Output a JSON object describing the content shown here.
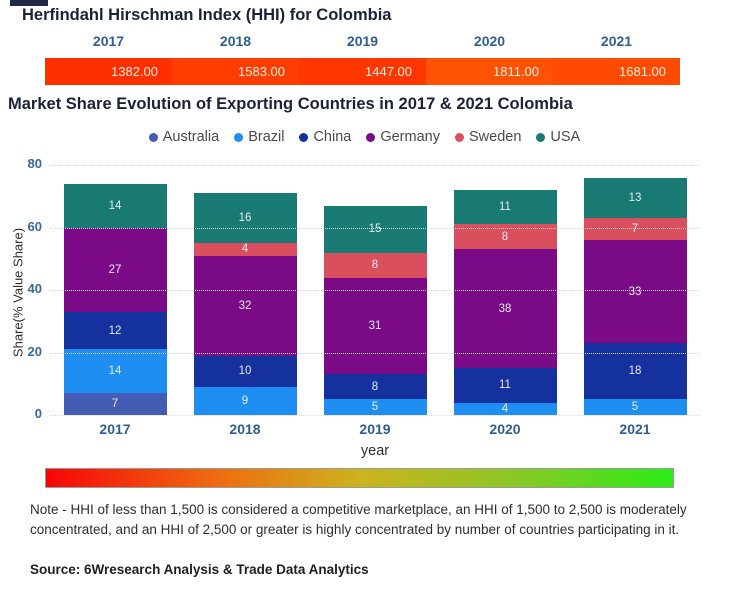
{
  "page": {
    "title1": "Herfindahl Hirschman Index (HHI) for Colombia",
    "title2": "Market Share Evolution of Exporting Countries in 2017 & 2021 Colombia",
    "note": "Note - HHI of less than 1,500 is considered a competitive marketplace, an HHI of 1,500 to 2,500 is moderately concentrated, and an HHI of 2,500 or greater is highly concentrated by number of countries participating in it.",
    "source": "Source: 6Wresearch Analysis & Trade Data Analytics"
  },
  "hhi_strip": {
    "years": [
      "2017",
      "2018",
      "2019",
      "2020",
      "2021"
    ],
    "values": [
      "1382.00",
      "1583.00",
      "1447.00",
      "1811.00",
      "1681.00"
    ],
    "cell_colors": [
      "#ff3000",
      "#ff3d00",
      "#ff3600",
      "#ff5205",
      "#ff4a02"
    ]
  },
  "chart_data": {
    "type": "bar",
    "stacked": true,
    "title": "Market Share Evolution of Exporting Countries in 2017 & 2021 Colombia",
    "categories": [
      "2017",
      "2018",
      "2019",
      "2020",
      "2021"
    ],
    "series": [
      {
        "name": "Australia",
        "color": "#455cb3",
        "values": [
          7,
          0,
          0,
          0,
          0
        ]
      },
      {
        "name": "Brazil",
        "color": "#1e8ef2",
        "values": [
          14,
          9,
          5,
          4,
          5
        ]
      },
      {
        "name": "China",
        "color": "#14319e",
        "values": [
          12,
          10,
          8,
          11,
          18
        ]
      },
      {
        "name": "Germany",
        "color": "#7a0a86",
        "values": [
          27,
          32,
          31,
          38,
          33
        ]
      },
      {
        "name": "Sweden",
        "color": "#d94f5e",
        "values": [
          0,
          4,
          8,
          8,
          7
        ]
      },
      {
        "name": "USA",
        "color": "#187a72",
        "values": [
          14,
          16,
          15,
          11,
          13
        ]
      }
    ],
    "xlabel": "year",
    "ylabel": "Share(% Value Share)",
    "ylim": [
      0,
      80
    ],
    "yticks": [
      0,
      20,
      40,
      60,
      80
    ],
    "grid": "horizontal-dotted",
    "legend_position": "top",
    "pixels_per_unit": 3.125
  },
  "gradient_legend": {
    "left_color": "#f60507",
    "mid_color": "#ccb31f",
    "right_color": "#2bec17",
    "meaning": "HHI color scale red to green"
  }
}
